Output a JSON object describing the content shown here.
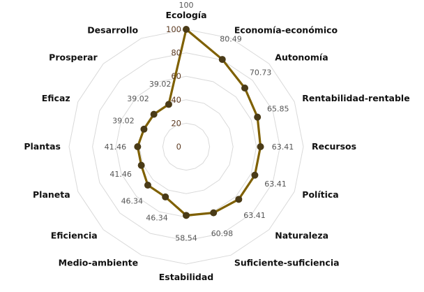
{
  "chart_data": {
    "type": "radar",
    "title": "",
    "categories": [
      "Ecología",
      "Economía-económico",
      "Autonomía",
      "Rentabilidad-rentable",
      "Recursos",
      "Política",
      "Naturaleza",
      "Suficiente-suficiencia",
      "Estabilidad",
      "Medio-ambiente",
      "Eficiencia",
      "Planeta",
      "Plantas",
      "Eficaz",
      "Prosperar",
      "Desarrollo"
    ],
    "series": [
      {
        "name": "",
        "values": [
          100,
          80.49,
          70.73,
          65.85,
          63.41,
          63.41,
          63.41,
          60.98,
          58.54,
          46.34,
          46.34,
          41.46,
          41.46,
          39.02,
          39.02,
          39.02
        ],
        "data_labels": [
          "100",
          "80.49",
          "70.73",
          "65.85",
          "63.41",
          "63.41",
          "63.41",
          "60.98",
          "58.54",
          "46.34",
          "46.34",
          "41.46",
          "41.46",
          "39.02",
          "39.02",
          "39.02"
        ]
      }
    ],
    "radial_axis": {
      "min": 0,
      "max": 100,
      "ticks": [
        0,
        20,
        40,
        60,
        80,
        100
      ],
      "tick_labels": [
        "0",
        "20",
        "40",
        "60",
        "80",
        "100"
      ]
    },
    "grid": true,
    "legend": "none",
    "colors": {
      "line": "#7f6000",
      "marker": "#4a3b17",
      "grid": "#d9d9d9",
      "tick_label": "#5c3a21",
      "data_label": "#555555",
      "category_label": "#111111"
    }
  }
}
